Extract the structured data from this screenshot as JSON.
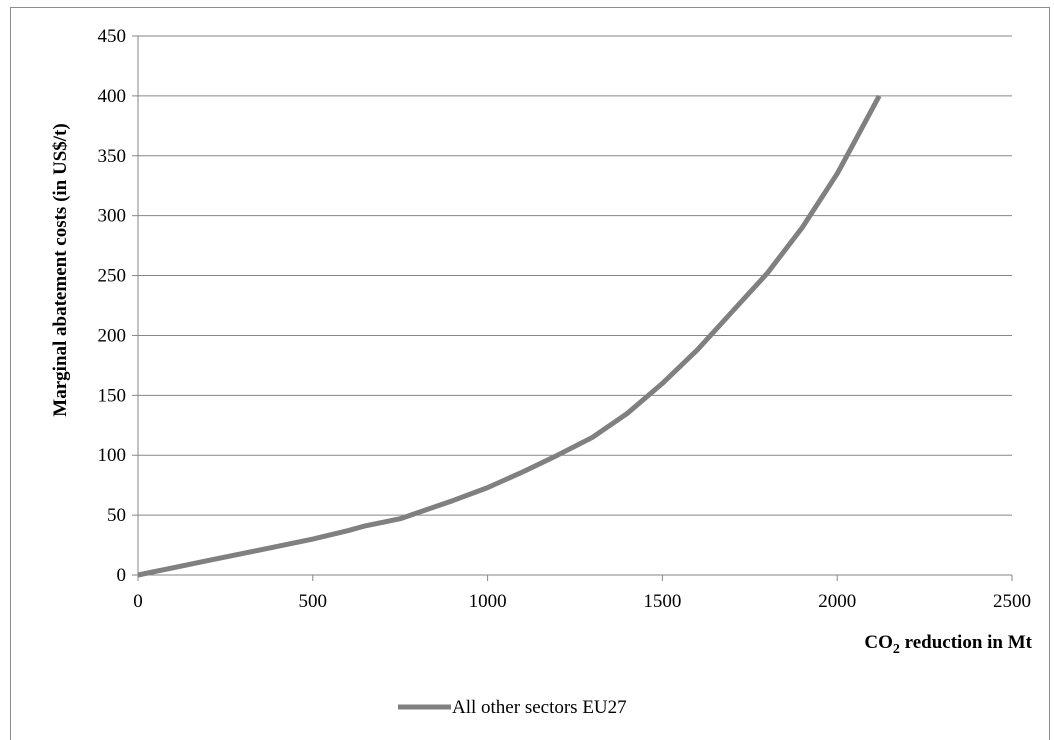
{
  "chart_data": {
    "type": "line",
    "title": "",
    "xlabel_main": "CO",
    "xlabel_sub": "2",
    "xlabel_rest": " reduction in Mt",
    "ylabel": "Marginal abatement costs (in US$/t)",
    "xlim": [
      0,
      2500
    ],
    "ylim": [
      0,
      450
    ],
    "xticks": [
      0,
      500,
      1000,
      1500,
      2000,
      2500
    ],
    "yticks": [
      0,
      50,
      100,
      150,
      200,
      250,
      300,
      350,
      400,
      450
    ],
    "grid": "horizontal",
    "legend_position": "bottom-center",
    "series": [
      {
        "name": "All other sectors EU27",
        "color": "#808080",
        "x": [
          0,
          100,
          200,
          300,
          400,
          500,
          600,
          650,
          750,
          900,
          1000,
          1100,
          1200,
          1300,
          1400,
          1500,
          1600,
          1700,
          1800,
          1900,
          2000,
          2050,
          2120
        ],
        "y": [
          0,
          6,
          12,
          18,
          24,
          30,
          37,
          41,
          47,
          62,
          73,
          86,
          100,
          115,
          135,
          160,
          188,
          220,
          252,
          290,
          335,
          362,
          400
        ]
      }
    ]
  }
}
